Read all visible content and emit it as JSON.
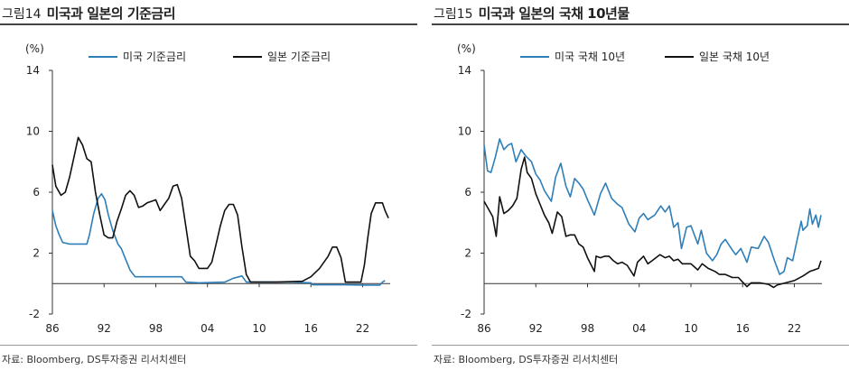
{
  "charts": [
    {
      "figure_label": "그림14",
      "title": "미국과 일본의 기준금리",
      "source": "자료: Bloomberg, DS투자증권 리서치센터"
    },
    {
      "figure_label": "그림15",
      "title": "미국과 일본의 국채 10년물",
      "source": "자료: Bloomberg, DS투자증권 리서치센터"
    }
  ],
  "chart_data": [
    {
      "type": "line",
      "title": "미국과 일본의 기준금리",
      "ylabel": "(%)",
      "ylim": [
        -2,
        14
      ],
      "yticks": [
        -2,
        2,
        6,
        10,
        14
      ],
      "ytick_labels": [
        "-2",
        "2",
        "6",
        "10",
        "14"
      ],
      "xlim": [
        1986,
        2025.2
      ],
      "xticks": [
        1986,
        1992,
        1998,
        2004,
        2010,
        2016,
        2022
      ],
      "xtick_labels": [
        "86",
        "92",
        "98",
        "04",
        "10",
        "16",
        "22"
      ],
      "grid": false,
      "legend": "top",
      "series": [
        {
          "name": "미국 기준금리",
          "color": "#2e7fb8",
          "points": [
            [
              1986,
              4.8
            ],
            [
              1986.4,
              3.8
            ],
            [
              1986.8,
              3.2
            ],
            [
              1987.2,
              2.7
            ],
            [
              1988,
              2.6
            ],
            [
              1989,
              2.6
            ],
            [
              1990,
              2.6
            ],
            [
              1990.3,
              3.2
            ],
            [
              1990.8,
              4.6
            ],
            [
              1991.3,
              5.6
            ],
            [
              1991.7,
              5.9
            ],
            [
              1992.1,
              5.5
            ],
            [
              1992.5,
              4.5
            ],
            [
              1993,
              3.5
            ],
            [
              1993.6,
              2.6
            ],
            [
              1994,
              2.3
            ],
            [
              1994.5,
              1.6
            ],
            [
              1995,
              0.9
            ],
            [
              1995.6,
              0.45
            ],
            [
              1996.3,
              0.45
            ],
            [
              1997,
              0.45
            ],
            [
              1999,
              0.45
            ],
            [
              2001,
              0.45
            ],
            [
              2001.5,
              0.1
            ],
            [
              2003,
              0.05
            ],
            [
              2006,
              0.1
            ],
            [
              2007,
              0.35
            ],
            [
              2008,
              0.5
            ],
            [
              2008.5,
              0.1
            ],
            [
              2009,
              0.1
            ],
            [
              2014,
              0.1
            ],
            [
              2016,
              0.05
            ],
            [
              2016.2,
              -0.08
            ],
            [
              2020,
              -0.08
            ],
            [
              2022,
              -0.1
            ],
            [
              2024,
              -0.1
            ],
            [
              2024.3,
              0.1
            ],
            [
              2024.6,
              0.2
            ]
          ]
        },
        {
          "name": "일본 기준금리",
          "color": "#111111",
          "points": [
            [
              1986,
              7.8
            ],
            [
              1986.4,
              6.4
            ],
            [
              1987,
              5.8
            ],
            [
              1987.5,
              6.0
            ],
            [
              1988,
              7.0
            ],
            [
              1988.5,
              8.3
            ],
            [
              1989,
              9.6
            ],
            [
              1989.5,
              9.1
            ],
            [
              1990,
              8.2
            ],
            [
              1990.5,
              8.0
            ],
            [
              1991,
              6.0
            ],
            [
              1991.5,
              4.5
            ],
            [
              1992,
              3.2
            ],
            [
              1992.5,
              3.0
            ],
            [
              1993,
              3.0
            ],
            [
              1993.5,
              4.1
            ],
            [
              1994,
              4.9
            ],
            [
              1994.5,
              5.8
            ],
            [
              1995,
              6.1
            ],
            [
              1995.5,
              5.8
            ],
            [
              1996,
              5.0
            ],
            [
              1996.5,
              5.1
            ],
            [
              1997,
              5.3
            ],
            [
              1997.5,
              5.4
            ],
            [
              1998,
              5.5
            ],
            [
              1998.5,
              4.8
            ],
            [
              1999,
              5.2
            ],
            [
              1999.5,
              5.6
            ],
            [
              2000,
              6.4
            ],
            [
              2000.5,
              6.5
            ],
            [
              2001,
              5.6
            ],
            [
              2001.5,
              3.7
            ],
            [
              2002,
              1.8
            ],
            [
              2002.5,
              1.5
            ],
            [
              2003,
              1.0
            ],
            [
              2004,
              1.0
            ],
            [
              2004.5,
              1.4
            ],
            [
              2005,
              2.6
            ],
            [
              2005.5,
              3.8
            ],
            [
              2006,
              4.8
            ],
            [
              2006.5,
              5.2
            ],
            [
              2007,
              5.2
            ],
            [
              2007.5,
              4.5
            ],
            [
              2008,
              2.4
            ],
            [
              2008.5,
              0.6
            ],
            [
              2009,
              0.1
            ],
            [
              2012,
              0.1
            ],
            [
              2015,
              0.15
            ],
            [
              2016,
              0.45
            ],
            [
              2017,
              1.0
            ],
            [
              2018,
              1.8
            ],
            [
              2018.5,
              2.4
            ],
            [
              2019,
              2.4
            ],
            [
              2019.5,
              1.7
            ],
            [
              2020,
              0.1
            ],
            [
              2021,
              0.1
            ],
            [
              2021.8,
              0.1
            ],
            [
              2022.2,
              1.2
            ],
            [
              2022.6,
              3.0
            ],
            [
              2023,
              4.6
            ],
            [
              2023.5,
              5.3
            ],
            [
              2024.3,
              5.3
            ],
            [
              2024.6,
              4.8
            ],
            [
              2025,
              4.3
            ]
          ]
        }
      ]
    },
    {
      "type": "line",
      "title": "미국과 일본의 국채 10년물",
      "ylabel": "(%)",
      "ylim": [
        -2,
        14
      ],
      "yticks": [
        -2,
        2,
        6,
        10,
        14
      ],
      "ytick_labels": [
        "-2",
        "2",
        "6",
        "10",
        "14"
      ],
      "xlim": [
        1986,
        2025.2
      ],
      "xticks": [
        1986,
        1992,
        1998,
        2004,
        2010,
        2016,
        2022
      ],
      "xtick_labels": [
        "86",
        "92",
        "98",
        "04",
        "10",
        "16",
        "22"
      ],
      "grid": false,
      "legend": "top",
      "series": [
        {
          "name": "미국 국채 10년",
          "color": "#2e7fb8",
          "points": [
            [
              1986,
              9.1
            ],
            [
              1986.4,
              7.4
            ],
            [
              1986.8,
              7.3
            ],
            [
              1987.3,
              8.3
            ],
            [
              1987.8,
              9.5
            ],
            [
              1988.3,
              8.8
            ],
            [
              1988.8,
              9.1
            ],
            [
              1989.2,
              9.2
            ],
            [
              1989.7,
              8.0
            ],
            [
              1990.3,
              8.8
            ],
            [
              1990.8,
              8.4
            ],
            [
              1991.5,
              8.0
            ],
            [
              1992,
              7.2
            ],
            [
              1992.5,
              6.8
            ],
            [
              1993,
              6.1
            ],
            [
              1993.8,
              5.4
            ],
            [
              1994.3,
              7.0
            ],
            [
              1994.9,
              7.9
            ],
            [
              1995.5,
              6.4
            ],
            [
              1996,
              5.7
            ],
            [
              1996.5,
              6.9
            ],
            [
              1997,
              6.6
            ],
            [
              1997.5,
              6.2
            ],
            [
              1998,
              5.5
            ],
            [
              1998.8,
              4.5
            ],
            [
              1999.5,
              5.9
            ],
            [
              2000.1,
              6.6
            ],
            [
              2000.8,
              5.6
            ],
            [
              2001.5,
              5.2
            ],
            [
              2002,
              5.0
            ],
            [
              2002.8,
              3.9
            ],
            [
              2003.5,
              3.4
            ],
            [
              2004,
              4.3
            ],
            [
              2004.5,
              4.6
            ],
            [
              2005,
              4.2
            ],
            [
              2005.8,
              4.5
            ],
            [
              2006.5,
              5.1
            ],
            [
              2007,
              4.7
            ],
            [
              2007.5,
              5.1
            ],
            [
              2008,
              3.7
            ],
            [
              2008.5,
              4.0
            ],
            [
              2008.9,
              2.3
            ],
            [
              2009.5,
              3.7
            ],
            [
              2010,
              3.8
            ],
            [
              2010.8,
              2.6
            ],
            [
              2011.2,
              3.5
            ],
            [
              2011.8,
              2.0
            ],
            [
              2012.5,
              1.5
            ],
            [
              2013,
              1.9
            ],
            [
              2013.5,
              2.6
            ],
            [
              2014,
              2.9
            ],
            [
              2014.8,
              2.2
            ],
            [
              2015.2,
              1.9
            ],
            [
              2015.8,
              2.3
            ],
            [
              2016.5,
              1.4
            ],
            [
              2017,
              2.4
            ],
            [
              2017.8,
              2.3
            ],
            [
              2018.5,
              3.1
            ],
            [
              2019,
              2.7
            ],
            [
              2019.7,
              1.5
            ],
            [
              2020.3,
              0.6
            ],
            [
              2020.8,
              0.8
            ],
            [
              2021.2,
              1.7
            ],
            [
              2021.8,
              1.5
            ],
            [
              2022.3,
              2.8
            ],
            [
              2022.8,
              4.1
            ],
            [
              2023,
              3.5
            ],
            [
              2023.5,
              3.8
            ],
            [
              2023.8,
              4.9
            ],
            [
              2024.1,
              3.9
            ],
            [
              2024.5,
              4.5
            ],
            [
              2024.8,
              3.7
            ],
            [
              2025.1,
              4.5
            ]
          ]
        },
        {
          "name": "일본 국채 10년",
          "color": "#111111",
          "points": [
            [
              1986,
              5.4
            ],
            [
              1986.5,
              4.9
            ],
            [
              1987,
              4.4
            ],
            [
              1987.4,
              3.1
            ],
            [
              1987.8,
              5.7
            ],
            [
              1988.3,
              4.6
            ],
            [
              1988.8,
              4.8
            ],
            [
              1989.3,
              5.1
            ],
            [
              1989.8,
              5.6
            ],
            [
              1990.3,
              7.5
            ],
            [
              1990.7,
              8.3
            ],
            [
              1991,
              7.3
            ],
            [
              1991.5,
              6.9
            ],
            [
              1992,
              5.9
            ],
            [
              1992.5,
              5.2
            ],
            [
              1993,
              4.5
            ],
            [
              1993.5,
              4.0
            ],
            [
              1993.9,
              3.3
            ],
            [
              1994.5,
              4.7
            ],
            [
              1995,
              4.4
            ],
            [
              1995.5,
              3.1
            ],
            [
              1996,
              3.2
            ],
            [
              1996.5,
              3.2
            ],
            [
              1997,
              2.6
            ],
            [
              1997.5,
              2.4
            ],
            [
              1998,
              1.7
            ],
            [
              1998.8,
              0.8
            ],
            [
              1999,
              1.8
            ],
            [
              1999.5,
              1.7
            ],
            [
              2000,
              1.8
            ],
            [
              2000.5,
              1.8
            ],
            [
              2001,
              1.5
            ],
            [
              2001.5,
              1.3
            ],
            [
              2002,
              1.4
            ],
            [
              2002.6,
              1.2
            ],
            [
              2003.4,
              0.5
            ],
            [
              2003.8,
              1.4
            ],
            [
              2004.5,
              1.8
            ],
            [
              2005,
              1.3
            ],
            [
              2005.5,
              1.5
            ],
            [
              2006.4,
              1.9
            ],
            [
              2007,
              1.7
            ],
            [
              2007.5,
              1.8
            ],
            [
              2008,
              1.5
            ],
            [
              2008.5,
              1.6
            ],
            [
              2009,
              1.3
            ],
            [
              2010,
              1.3
            ],
            [
              2010.8,
              0.9
            ],
            [
              2011.3,
              1.3
            ],
            [
              2012,
              1.0
            ],
            [
              2012.8,
              0.8
            ],
            [
              2013.3,
              0.6
            ],
            [
              2014,
              0.6
            ],
            [
              2014.8,
              0.4
            ],
            [
              2015.5,
              0.4
            ],
            [
              2016,
              0.1
            ],
            [
              2016.5,
              -0.2
            ],
            [
              2017,
              0.05
            ],
            [
              2018,
              0.05
            ],
            [
              2019,
              -0.05
            ],
            [
              2019.6,
              -0.25
            ],
            [
              2020,
              -0.1
            ],
            [
              2021,
              0.05
            ],
            [
              2022,
              0.2
            ],
            [
              2023,
              0.5
            ],
            [
              2023.8,
              0.8
            ],
            [
              2024.3,
              0.9
            ],
            [
              2024.8,
              1.0
            ],
            [
              2025.1,
              1.5
            ]
          ]
        }
      ]
    }
  ]
}
